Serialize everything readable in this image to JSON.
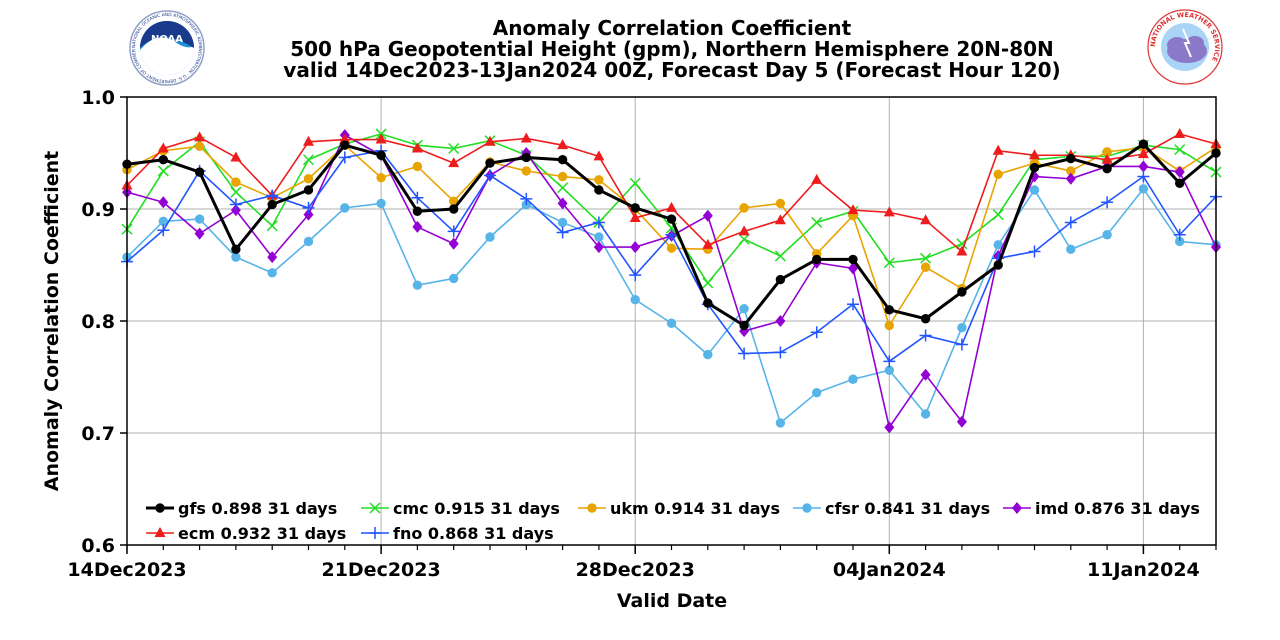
{
  "logos": {
    "left": {
      "name": "noaa-logo",
      "text": "NOAA",
      "ring_text": "NATIONAL OCEANIC AND ATMOSPHERIC ADMINISTRATION · U.S. DEPARTMENT OF COMMERCE"
    },
    "right": {
      "name": "national-weather-service-logo",
      "ring_text": "NATIONAL WEATHER SERVICE"
    }
  },
  "chart_data": {
    "type": "line",
    "title": [
      "Anomaly Correlation Coefficient",
      "500 hPa Geopotential Height (gpm), Northern Hemisphere 20N-80N",
      "valid 14Dec2023-13Jan2024 00Z, Forecast Day 5 (Forecast Hour 120)"
    ],
    "xlabel": "Valid Date",
    "ylabel": "Anomaly Correlation Coefficient",
    "ylim": [
      0.6,
      1.0
    ],
    "yticks": [
      "0.6",
      "0.7",
      "0.8",
      "0.9",
      "1.0"
    ],
    "xticks": [
      {
        "date": "2023-12-14",
        "label": "14Dec2023"
      },
      {
        "date": "2023-12-21",
        "label": "21Dec2023"
      },
      {
        "date": "2023-12-28",
        "label": "28Dec2023"
      },
      {
        "date": "2024-01-04",
        "label": "04Jan2024"
      },
      {
        "date": "2024-01-11",
        "label": "11Jan2024"
      }
    ],
    "x": [
      "2023-12-14",
      "2023-12-15",
      "2023-12-16",
      "2023-12-17",
      "2023-12-18",
      "2023-12-19",
      "2023-12-20",
      "2023-12-21",
      "2023-12-22",
      "2023-12-23",
      "2023-12-24",
      "2023-12-25",
      "2023-12-26",
      "2023-12-27",
      "2023-12-28",
      "2023-12-29",
      "2023-12-30",
      "2023-12-31",
      "2024-01-01",
      "2024-01-02",
      "2024-01-03",
      "2024-01-04",
      "2024-01-05",
      "2024-01-06",
      "2024-01-07",
      "2024-01-08",
      "2024-01-09",
      "2024-01-10",
      "2024-01-11",
      "2024-01-12",
      "2024-01-13"
    ],
    "xlim": [
      "2023-12-14",
      "2024-01-13"
    ],
    "grid": true,
    "legend_position": "bottom-left",
    "series": [
      {
        "name": "gfs",
        "legend": "gfs 0.898 31 days",
        "color": "#000000",
        "marker": "circle",
        "line_width": 3,
        "values": [
          0.94,
          0.944,
          0.933,
          0.864,
          0.904,
          0.917,
          0.957,
          0.948,
          0.898,
          0.9,
          0.941,
          0.946,
          0.944,
          0.917,
          0.901,
          0.891,
          0.816,
          0.796,
          0.837,
          0.855,
          0.855,
          0.81,
          0.802,
          0.826,
          0.85,
          0.937,
          0.945,
          0.936,
          0.958,
          0.923,
          0.95
        ]
      },
      {
        "name": "cmc",
        "legend": "cmc 0.915 31 days",
        "color": "#22dd22",
        "marker": "x",
        "line_width": 1.6,
        "values": [
          0.882,
          0.934,
          0.96,
          0.915,
          0.885,
          0.944,
          0.958,
          0.967,
          0.957,
          0.954,
          0.961,
          0.948,
          0.919,
          0.888,
          0.923,
          0.883,
          0.834,
          0.873,
          0.858,
          0.888,
          0.898,
          0.852,
          0.856,
          0.869,
          0.895,
          0.944,
          0.947,
          0.947,
          0.957,
          0.953,
          0.933
        ]
      },
      {
        "name": "ukm",
        "legend": "ukm 0.914 31 days",
        "color": "#e8a400",
        "marker": "circle",
        "line_width": 1.6,
        "values": [
          0.935,
          0.952,
          0.956,
          0.924,
          0.91,
          0.927,
          0.957,
          0.928,
          0.938,
          0.907,
          0.942,
          0.934,
          0.929,
          0.926,
          0.9,
          0.865,
          0.864,
          0.901,
          0.905,
          0.86,
          0.894,
          0.796,
          0.848,
          0.829,
          0.931,
          0.941,
          0.934,
          0.951,
          0.955,
          0.934,
          0.955
        ]
      },
      {
        "name": "cfsr",
        "legend": "cfsr 0.841 31 days",
        "color": "#56b4e9",
        "marker": "circle",
        "line_width": 1.6,
        "values": [
          0.857,
          0.889,
          0.891,
          0.857,
          0.843,
          0.871,
          0.901,
          0.905,
          0.832,
          0.838,
          0.875,
          0.904,
          0.888,
          0.875,
          0.819,
          0.798,
          0.77,
          0.811,
          0.709,
          0.736,
          0.748,
          0.756,
          0.717,
          0.794,
          0.868,
          0.917,
          0.864,
          0.877,
          0.918,
          0.871,
          0.868
        ]
      },
      {
        "name": "imd",
        "legend": "imd 0.876 31 days",
        "color": "#9400d3",
        "marker": "diamond",
        "line_width": 1.6,
        "values": [
          0.915,
          0.906,
          0.878,
          0.899,
          0.857,
          0.895,
          0.966,
          0.948,
          0.884,
          0.869,
          0.93,
          0.95,
          0.905,
          0.866,
          0.866,
          0.876,
          0.894,
          0.791,
          0.8,
          0.852,
          0.847,
          0.705,
          0.752,
          0.71,
          0.858,
          0.929,
          0.927,
          0.938,
          0.938,
          0.933,
          0.866
        ]
      },
      {
        "name": "ecm",
        "legend": "ecm 0.932 31 days",
        "color": "#ee1c1c",
        "marker": "triangle",
        "line_width": 1.6,
        "values": [
          0.921,
          0.954,
          0.964,
          0.946,
          0.912,
          0.96,
          0.962,
          0.962,
          0.954,
          0.941,
          0.96,
          0.963,
          0.957,
          0.947,
          0.892,
          0.901,
          0.868,
          0.88,
          0.89,
          0.926,
          0.899,
          0.897,
          0.89,
          0.862,
          0.952,
          0.948,
          0.948,
          0.944,
          0.949,
          0.967,
          0.958
        ]
      },
      {
        "name": "fno",
        "legend": "fno 0.868 31 days",
        "color": "#2255ff",
        "marker": "plus",
        "line_width": 1.6,
        "values": [
          0.853,
          0.881,
          0.934,
          0.904,
          0.912,
          0.901,
          0.946,
          0.952,
          0.91,
          0.88,
          0.93,
          0.909,
          0.879,
          0.888,
          0.841,
          0.877,
          0.815,
          0.771,
          0.772,
          0.79,
          0.815,
          0.764,
          0.787,
          0.779,
          0.856,
          0.862,
          0.888,
          0.906,
          0.929,
          0.877,
          0.911
        ]
      }
    ],
    "legend_rows": [
      [
        "gfs",
        "cmc",
        "ukm",
        "cfsr",
        "imd"
      ],
      [
        "ecm",
        "fno"
      ]
    ]
  }
}
